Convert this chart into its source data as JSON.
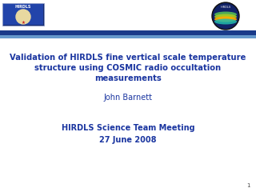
{
  "title_line1": "Validation of HIRDLS fine vertical scale temperature",
  "title_line2": "structure using COSMIC radio occultation",
  "title_line3": "measurements",
  "author": "John Barnett",
  "meeting_line1": "HIRDLS Science Team Meeting",
  "meeting_line2": "27 June 2008",
  "text_color": "#1a35a0",
  "bg_color": "#f0f0f0",
  "header_bg": "#ffffff",
  "bar_dark": "#1a3a8a",
  "bar_light": "#6699cc",
  "page_number": "1"
}
